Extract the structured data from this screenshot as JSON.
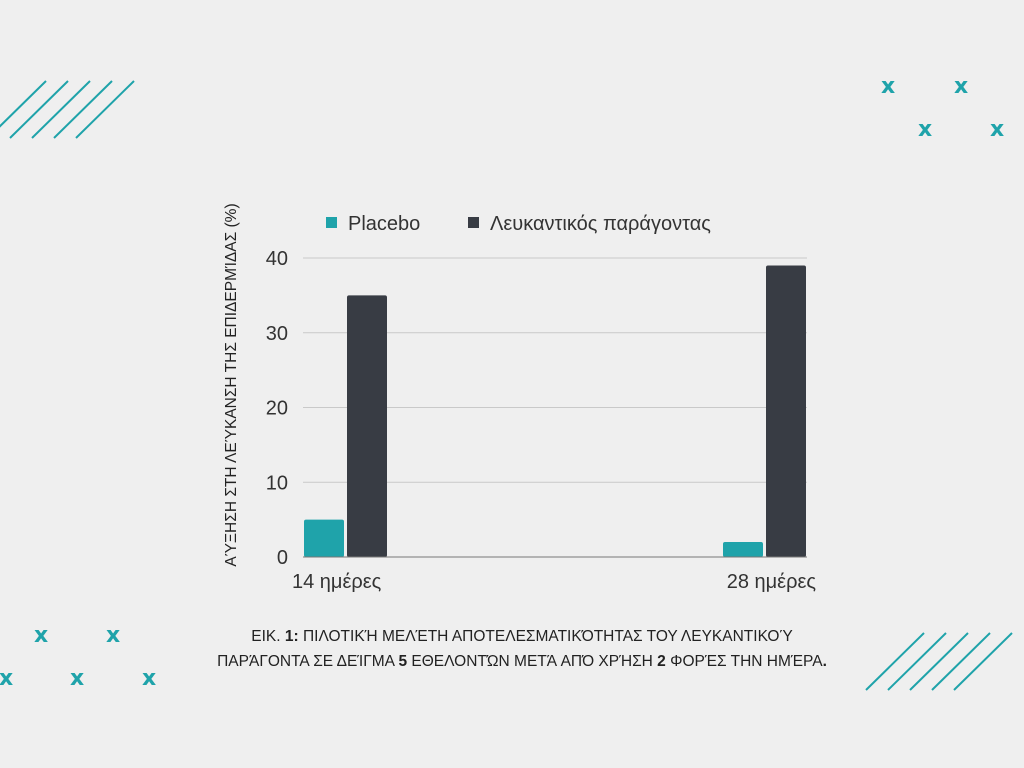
{
  "chart_data": {
    "type": "bar",
    "categories": [
      "14 ημέρες",
      "28 ημέρες"
    ],
    "series": [
      {
        "name": "Placebo",
        "values": [
          5,
          2
        ],
        "color": "#1fa3aa"
      },
      {
        "name": "Λευκαντικός παράγοντας",
        "values": [
          35,
          39
        ],
        "color": "#383c44"
      }
    ],
    "ylabel": "ΑΎΞΗΣΗ ΣΤΗ ΛΕΎΚΑΝΣΗ ΤΗΣ ΕΠΙΔΕΡΜΊΔΑΣ (%)",
    "yticks": [
      0,
      10,
      20,
      30,
      40
    ],
    "ylim": [
      0,
      40
    ],
    "grid": true,
    "legend": "top"
  },
  "caption": {
    "p1": "ΕΙΚ. ",
    "b1": "1:",
    "p2": " ΠΙΛΟΤΙΚΉ ΜΕΛΈΤΗ ΑΠΟΤΕΛΕΣΜΑΤΙΚΌΤΗΤΑΣ ΤΟΥ ΛΕΥΚΑΝΤΙΚΟΎ ΠΑΡΆΓΟΝΤΑ ΣΕ ΔΕΊΓΜΑ ",
    "b2": "5",
    "p3": " ΕΘΕΛΟΝΤΏΝ ΜΕΤΆ ΑΠΌ ΧΡΉΣΗ ",
    "b3": "2",
    "p4": " ΦΟΡΈΣ ΤΗΝ ΗΜΈΡΑ",
    "b4": "."
  },
  "decorations": {
    "accent_color": "#1fa3aa",
    "x_glyph": "x"
  }
}
